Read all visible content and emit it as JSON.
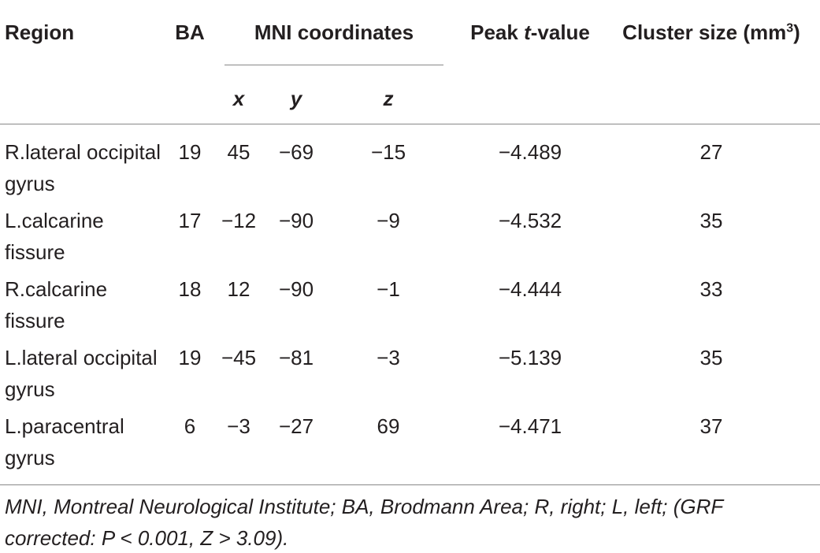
{
  "table": {
    "header": {
      "region": "Region",
      "ba": "BA",
      "mni": "MNI coordinates",
      "peak": {
        "before": "Peak ",
        "italic": "t",
        "after": "-value"
      },
      "cluster": {
        "text": "Cluster size (mm",
        "sup": "3",
        "close": ")"
      },
      "sub": [
        "x",
        "y",
        "z"
      ]
    },
    "rows": [
      [
        "R.lateral occipital gyrus",
        "19",
        "45",
        "−69",
        "−15",
        "−4.489",
        "27"
      ],
      [
        "L.calcarine fissure",
        "17",
        "−12",
        "−90",
        "−9",
        "−4.532",
        "35"
      ],
      [
        "R.calcarine fissure",
        "18",
        "12",
        "−90",
        "−1",
        "−4.444",
        "33"
      ],
      [
        "L.lateral occipital gyrus",
        "19",
        "−45",
        "−81",
        "−3",
        "−5.139",
        "35"
      ],
      [
        "L.paracentral gyrus",
        "6",
        "−3",
        "−27",
        "69",
        "−4.471",
        "37"
      ]
    ],
    "footnote": "MNI, Montreal Neurological Institute; BA, Brodmann Area; R, right; L, left; (GRF corrected: P < 0.001, Z > 3.09)."
  }
}
